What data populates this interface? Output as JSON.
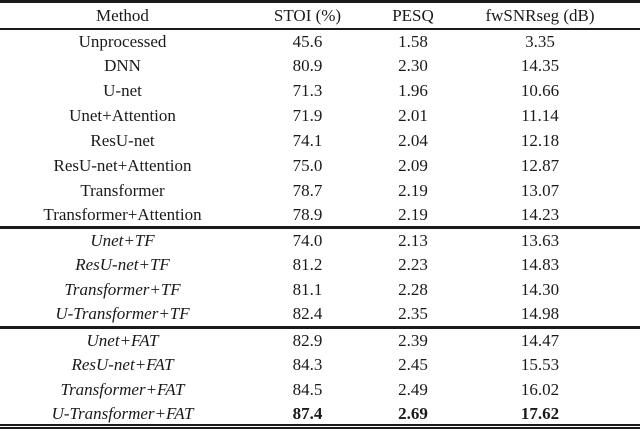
{
  "colors": {
    "background": "#ffffff",
    "text": "#1a1a1a",
    "rule": "#1a1a1a"
  },
  "table": {
    "headers": [
      "Method",
      "STOI (%)",
      "PESQ",
      "fwSNRseg (dB)"
    ],
    "sections": [
      {
        "name": "baselines",
        "italic": false,
        "rows": [
          {
            "method": "Unprocessed",
            "stoi": "45.6",
            "pesq": "1.58",
            "fwsnrseg": "3.35"
          },
          {
            "method": "DNN",
            "stoi": "80.9",
            "pesq": "2.30",
            "fwsnrseg": "14.35"
          },
          {
            "method": "U-net",
            "stoi": "71.3",
            "pesq": "1.96",
            "fwsnrseg": "10.66"
          },
          {
            "method": "Unet+Attention",
            "stoi": "71.9",
            "pesq": "2.01",
            "fwsnrseg": "11.14"
          },
          {
            "method": "ResU-net",
            "stoi": "74.1",
            "pesq": "2.04",
            "fwsnrseg": "12.18"
          },
          {
            "method": "ResU-net+Attention",
            "stoi": "75.0",
            "pesq": "2.09",
            "fwsnrseg": "12.87"
          },
          {
            "method": "Transformer",
            "stoi": "78.7",
            "pesq": "2.19",
            "fwsnrseg": "13.07"
          },
          {
            "method": "Transformer+Attention",
            "stoi": "78.9",
            "pesq": "2.19",
            "fwsnrseg": "14.23"
          }
        ]
      },
      {
        "name": "tf-variants",
        "italic": true,
        "rows": [
          {
            "method": "Unet+TF",
            "stoi": "74.0",
            "pesq": "2.13",
            "fwsnrseg": "13.63"
          },
          {
            "method": "ResU-net+TF",
            "stoi": "81.2",
            "pesq": "2.23",
            "fwsnrseg": "14.83"
          },
          {
            "method": "Transformer+TF",
            "stoi": "81.1",
            "pesq": "2.28",
            "fwsnrseg": "14.30"
          },
          {
            "method": "U-Transformer+TF",
            "stoi": "82.4",
            "pesq": "2.35",
            "fwsnrseg": "14.98"
          }
        ]
      },
      {
        "name": "fat-variants",
        "italic": true,
        "rows": [
          {
            "method": "Unet+FAT",
            "stoi": "82.9",
            "pesq": "2.39",
            "fwsnrseg": "14.47"
          },
          {
            "method": "ResU-net+FAT",
            "stoi": "84.3",
            "pesq": "2.45",
            "fwsnrseg": "15.53"
          },
          {
            "method": "Transformer+FAT",
            "stoi": "84.5",
            "pesq": "2.49",
            "fwsnrseg": "16.02"
          },
          {
            "method": "U-Transformer+FAT",
            "stoi": "87.4",
            "pesq": "2.69",
            "fwsnrseg": "17.62",
            "bold_values": true
          }
        ]
      }
    ]
  }
}
